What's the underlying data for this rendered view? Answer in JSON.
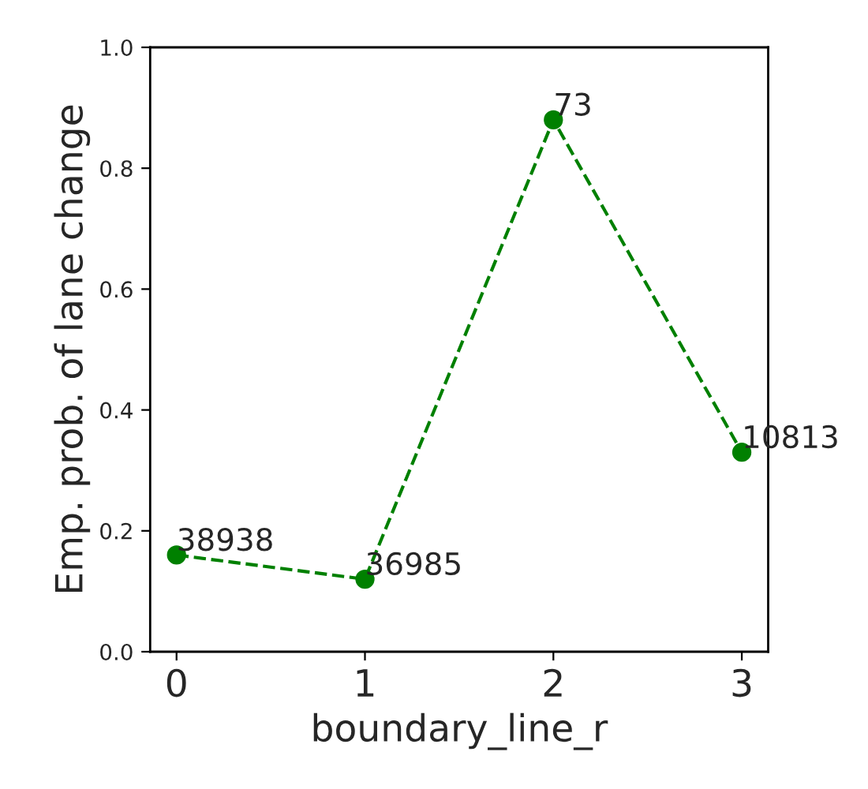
{
  "chart_data": {
    "type": "line",
    "xlabel": "boundary_line_r",
    "ylabel": "Emp. prob. of lane change",
    "x": [
      0,
      1,
      2,
      3
    ],
    "series": [
      {
        "color": "#008000",
        "values": [
          0.16,
          0.12,
          0.88,
          0.33
        ]
      }
    ],
    "marker": "circle",
    "line_style": "dashed",
    "grid": false,
    "legend": false,
    "xlim": [
      -0.14,
      3.14
    ],
    "xticks": [
      0,
      1,
      2,
      3
    ],
    "ylim": [
      0,
      1
    ],
    "yticks": [
      {
        "value": 0,
        "label": "0.0"
      },
      {
        "value": 0.2,
        "label": "0.2"
      },
      {
        "value": 0.4,
        "label": "0.4"
      },
      {
        "value": 0.6,
        "label": "0.6"
      },
      {
        "value": 0.8,
        "label": "0.8"
      },
      {
        "value": 1,
        "label": "1.0"
      }
    ],
    "annotations": [
      {
        "text": "38938",
        "x": 0,
        "y": 0.16
      },
      {
        "text": "36985",
        "x": 1,
        "y": 0.12
      },
      {
        "text": "73",
        "x": 2,
        "y": 0.88
      },
      {
        "text": "10813",
        "x": 3,
        "y": 0.33
      }
    ]
  }
}
